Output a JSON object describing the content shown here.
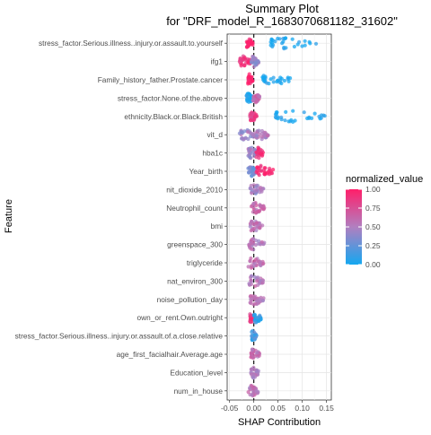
{
  "chart_data": {
    "type": "scatter",
    "title": "Summary Plot",
    "subtitle": "for \"DRF_model_R_1683070681182_31602\"",
    "xlabel": "SHAP Contribution",
    "ylabel": "Feature",
    "xlim": [
      -0.055,
      0.16
    ],
    "x_ticks": [
      -0.05,
      0.0,
      0.05,
      0.1,
      0.15
    ],
    "x_tick_labels": [
      "-0.05",
      "0.00",
      "0.05",
      "0.10",
      "0.15"
    ],
    "grid": true,
    "zero_line": "dashed",
    "legend": {
      "title": "normalized_value",
      "placement": "right",
      "ticks": [
        "1.00",
        "0.75",
        "0.50",
        "0.25",
        "0.00"
      ],
      "colors": {
        "high": "#ff1f6a",
        "mid": "#b17fc0",
        "low": "#14a7f0"
      }
    },
    "features": [
      {
        "name": "stress_factor.Serious.illness..injury.or.assault.to.yourself",
        "clusters": [
          {
            "min": -0.015,
            "max": -0.002,
            "value": 1.0
          },
          {
            "min": 0.035,
            "max": 0.13,
            "value": 0.0
          }
        ]
      },
      {
        "name": "ifg1",
        "clusters": [
          {
            "min": -0.03,
            "max": -0.005,
            "value": 0.9
          },
          {
            "min": -0.005,
            "max": 0.01,
            "value": 0.45
          }
        ]
      },
      {
        "name": "Family_history_father.Prostate.cancer",
        "clusters": [
          {
            "min": -0.012,
            "max": -0.002,
            "value": 1.0
          },
          {
            "min": 0.018,
            "max": 0.075,
            "value": 0.0
          }
        ]
      },
      {
        "name": "stress_factor.None.of.the.above",
        "clusters": [
          {
            "min": -0.015,
            "max": -0.003,
            "value": 0.0
          },
          {
            "min": -0.002,
            "max": 0.012,
            "value": 0.6
          }
        ]
      },
      {
        "name": "ethnicity.Black.or.Black.British",
        "clusters": [
          {
            "min": -0.008,
            "max": 0.006,
            "value": 0.85
          },
          {
            "min": 0.045,
            "max": 0.15,
            "value": 0.0
          }
        ]
      },
      {
        "name": "vit_d",
        "clusters": [
          {
            "min": -0.03,
            "max": 0.005,
            "value": 0.45
          },
          {
            "min": 0.005,
            "max": 0.03,
            "value": 0.5
          }
        ]
      },
      {
        "name": "hba1c",
        "clusters": [
          {
            "min": -0.012,
            "max": 0.008,
            "value": 0.45
          },
          {
            "min": 0.005,
            "max": 0.02,
            "value": 0.9
          }
        ]
      },
      {
        "name": "Year_birth",
        "clusters": [
          {
            "min": -0.012,
            "max": 0.005,
            "value": 0.3
          },
          {
            "min": 0.005,
            "max": 0.04,
            "value": 0.95
          }
        ]
      },
      {
        "name": "nit_dioxide_2010",
        "clusters": [
          {
            "min": -0.008,
            "max": 0.02,
            "value": 0.45
          }
        ]
      },
      {
        "name": "Neutrophil_count",
        "clusters": [
          {
            "min": -0.005,
            "max": 0.022,
            "value": 0.6
          }
        ]
      },
      {
        "name": "bmi",
        "clusters": [
          {
            "min": -0.008,
            "max": 0.018,
            "value": 0.55
          }
        ]
      },
      {
        "name": "greenspace_300",
        "clusters": [
          {
            "min": -0.01,
            "max": 0.022,
            "value": 0.55
          }
        ]
      },
      {
        "name": "triglyceride",
        "clusters": [
          {
            "min": -0.012,
            "max": 0.02,
            "value": 0.6
          }
        ]
      },
      {
        "name": "nat_environ_300",
        "clusters": [
          {
            "min": -0.01,
            "max": 0.02,
            "value": 0.55
          }
        ]
      },
      {
        "name": "noise_pollution_day",
        "clusters": [
          {
            "min": -0.008,
            "max": 0.02,
            "value": 0.55
          }
        ]
      },
      {
        "name": "own_or_rent.Own.outright",
        "clusters": [
          {
            "min": -0.008,
            "max": 0.0,
            "value": 0.85
          },
          {
            "min": 0.0,
            "max": 0.015,
            "value": 0.1
          }
        ]
      },
      {
        "name": "stress_factor.Serious.illness..injury.or.assault.of.a.close.relative",
        "clusters": [
          {
            "min": -0.005,
            "max": 0.006,
            "value": 0.15
          }
        ]
      },
      {
        "name": "age_first_facialhair.Average.age",
        "clusters": [
          {
            "min": -0.006,
            "max": 0.012,
            "value": 0.6
          }
        ]
      },
      {
        "name": "Education_level",
        "clusters": [
          {
            "min": -0.006,
            "max": 0.01,
            "value": 0.5
          }
        ]
      },
      {
        "name": "num_in_house",
        "clusters": [
          {
            "min": -0.012,
            "max": 0.012,
            "value": 0.55
          }
        ]
      }
    ]
  }
}
